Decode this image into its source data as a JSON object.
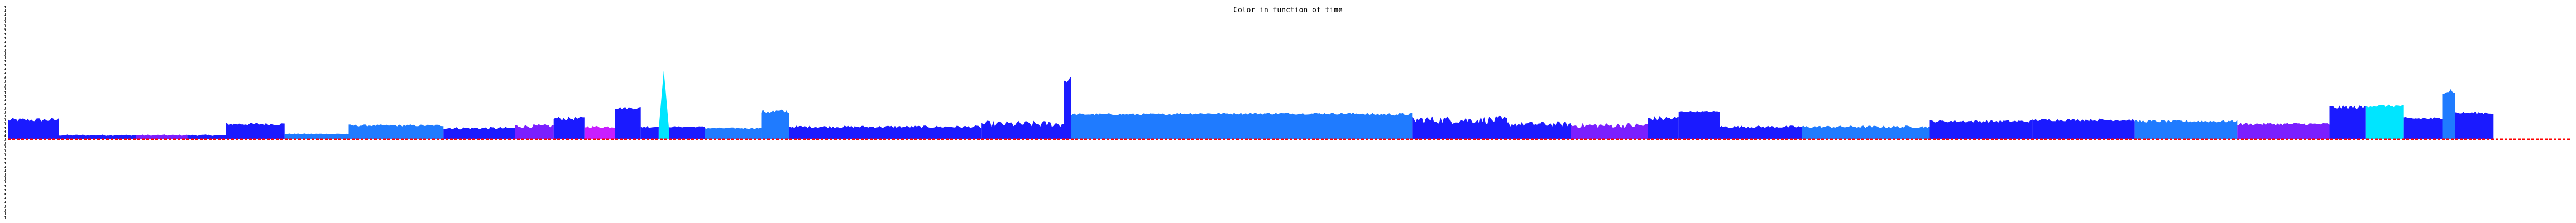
{
  "chart_data": {
    "type": "area",
    "title": "Color in function of time",
    "xlabel": "",
    "ylabel": "",
    "grid": false,
    "baseline_color": "#ff0000",
    "colors": {
      "blue": "#1a1aff",
      "azure": "#1f7bff",
      "cyan": "#00e5ff",
      "violet": "#7a1fff",
      "magenta": "#c81eff"
    },
    "segments": [
      {
        "x0": 0.0,
        "x1": 0.02,
        "y": 0.28,
        "noise": 0.03,
        "color": "blue"
      },
      {
        "x0": 0.02,
        "x1": 0.05,
        "y": 0.06,
        "noise": 0.01,
        "color": "blue"
      },
      {
        "x0": 0.05,
        "x1": 0.07,
        "y": 0.06,
        "noise": 0.01,
        "color": "violet"
      },
      {
        "x0": 0.07,
        "x1": 0.085,
        "y": 0.06,
        "noise": 0.01,
        "color": "blue"
      },
      {
        "x0": 0.085,
        "x1": 0.108,
        "y": 0.22,
        "noise": 0.02,
        "color": "blue"
      },
      {
        "x0": 0.108,
        "x1": 0.133,
        "y": 0.08,
        "noise": 0.005,
        "color": "azure"
      },
      {
        "x0": 0.133,
        "x1": 0.17,
        "y": 0.2,
        "noise": 0.015,
        "color": "azure"
      },
      {
        "x0": 0.17,
        "x1": 0.198,
        "y": 0.16,
        "noise": 0.02,
        "color": "blue"
      },
      {
        "x0": 0.198,
        "x1": 0.213,
        "y": 0.19,
        "noise": 0.03,
        "color": "violet"
      },
      {
        "x0": 0.213,
        "x1": 0.225,
        "y": 0.3,
        "noise": 0.03,
        "color": "blue"
      },
      {
        "x0": 0.225,
        "x1": 0.237,
        "y": 0.18,
        "noise": 0.02,
        "color": "magenta"
      },
      {
        "x0": 0.237,
        "x1": 0.247,
        "y": 0.45,
        "noise": 0.02,
        "color": "blue"
      },
      {
        "x0": 0.247,
        "x1": 0.254,
        "y": 0.18,
        "noise": 0.02,
        "color": "blue"
      },
      {
        "x0": 0.254,
        "x1": 0.258,
        "y": 1.0,
        "noise": 0.0,
        "color": "cyan"
      },
      {
        "x0": 0.258,
        "x1": 0.272,
        "y": 0.18,
        "noise": 0.01,
        "color": "blue"
      },
      {
        "x0": 0.272,
        "x1": 0.294,
        "y": 0.16,
        "noise": 0.01,
        "color": "azure"
      },
      {
        "x0": 0.294,
        "x1": 0.305,
        "y": 0.4,
        "noise": 0.03,
        "color": "azure"
      },
      {
        "x0": 0.305,
        "x1": 0.38,
        "y": 0.18,
        "noise": 0.02,
        "color": "blue"
      },
      {
        "x0": 0.38,
        "x1": 0.412,
        "y": 0.22,
        "noise": 0.05,
        "color": "blue"
      },
      {
        "x0": 0.412,
        "x1": 0.415,
        "y": 0.85,
        "noise": 0.05,
        "color": "blue"
      },
      {
        "x0": 0.415,
        "x1": 0.455,
        "y": 0.36,
        "noise": 0.015,
        "color": "azure"
      },
      {
        "x0": 0.455,
        "x1": 0.53,
        "y": 0.37,
        "noise": 0.015,
        "color": "azure"
      },
      {
        "x0": 0.53,
        "x1": 0.548,
        "y": 0.36,
        "noise": 0.02,
        "color": "azure"
      },
      {
        "x0": 0.548,
        "x1": 0.585,
        "y": 0.28,
        "noise": 0.06,
        "color": "blue"
      },
      {
        "x0": 0.585,
        "x1": 0.61,
        "y": 0.22,
        "noise": 0.04,
        "color": "blue"
      },
      {
        "x0": 0.61,
        "x1": 0.64,
        "y": 0.2,
        "noise": 0.04,
        "color": "violet"
      },
      {
        "x0": 0.64,
        "x1": 0.652,
        "y": 0.3,
        "noise": 0.04,
        "color": "blue"
      },
      {
        "x0": 0.652,
        "x1": 0.668,
        "y": 0.4,
        "noise": 0.01,
        "color": "blue"
      },
      {
        "x0": 0.668,
        "x1": 0.7,
        "y": 0.18,
        "noise": 0.02,
        "color": "blue"
      },
      {
        "x0": 0.7,
        "x1": 0.75,
        "y": 0.18,
        "noise": 0.02,
        "color": "azure"
      },
      {
        "x0": 0.75,
        "x1": 0.79,
        "y": 0.26,
        "noise": 0.02,
        "color": "blue"
      },
      {
        "x0": 0.79,
        "x1": 0.83,
        "y": 0.28,
        "noise": 0.02,
        "color": "blue"
      },
      {
        "x0": 0.83,
        "x1": 0.87,
        "y": 0.26,
        "noise": 0.02,
        "color": "azure"
      },
      {
        "x0": 0.87,
        "x1": 0.906,
        "y": 0.22,
        "noise": 0.02,
        "color": "violet"
      },
      {
        "x0": 0.906,
        "x1": 0.92,
        "y": 0.46,
        "noise": 0.03,
        "color": "blue"
      },
      {
        "x0": 0.92,
        "x1": 0.935,
        "y": 0.48,
        "noise": 0.02,
        "color": "cyan"
      },
      {
        "x0": 0.935,
        "x1": 0.95,
        "y": 0.3,
        "noise": 0.02,
        "color": "blue"
      },
      {
        "x0": 0.95,
        "x1": 0.955,
        "y": 0.7,
        "noise": 0.05,
        "color": "azure"
      },
      {
        "x0": 0.955,
        "x1": 0.97,
        "y": 0.38,
        "noise": 0.02,
        "color": "blue"
      }
    ]
  }
}
